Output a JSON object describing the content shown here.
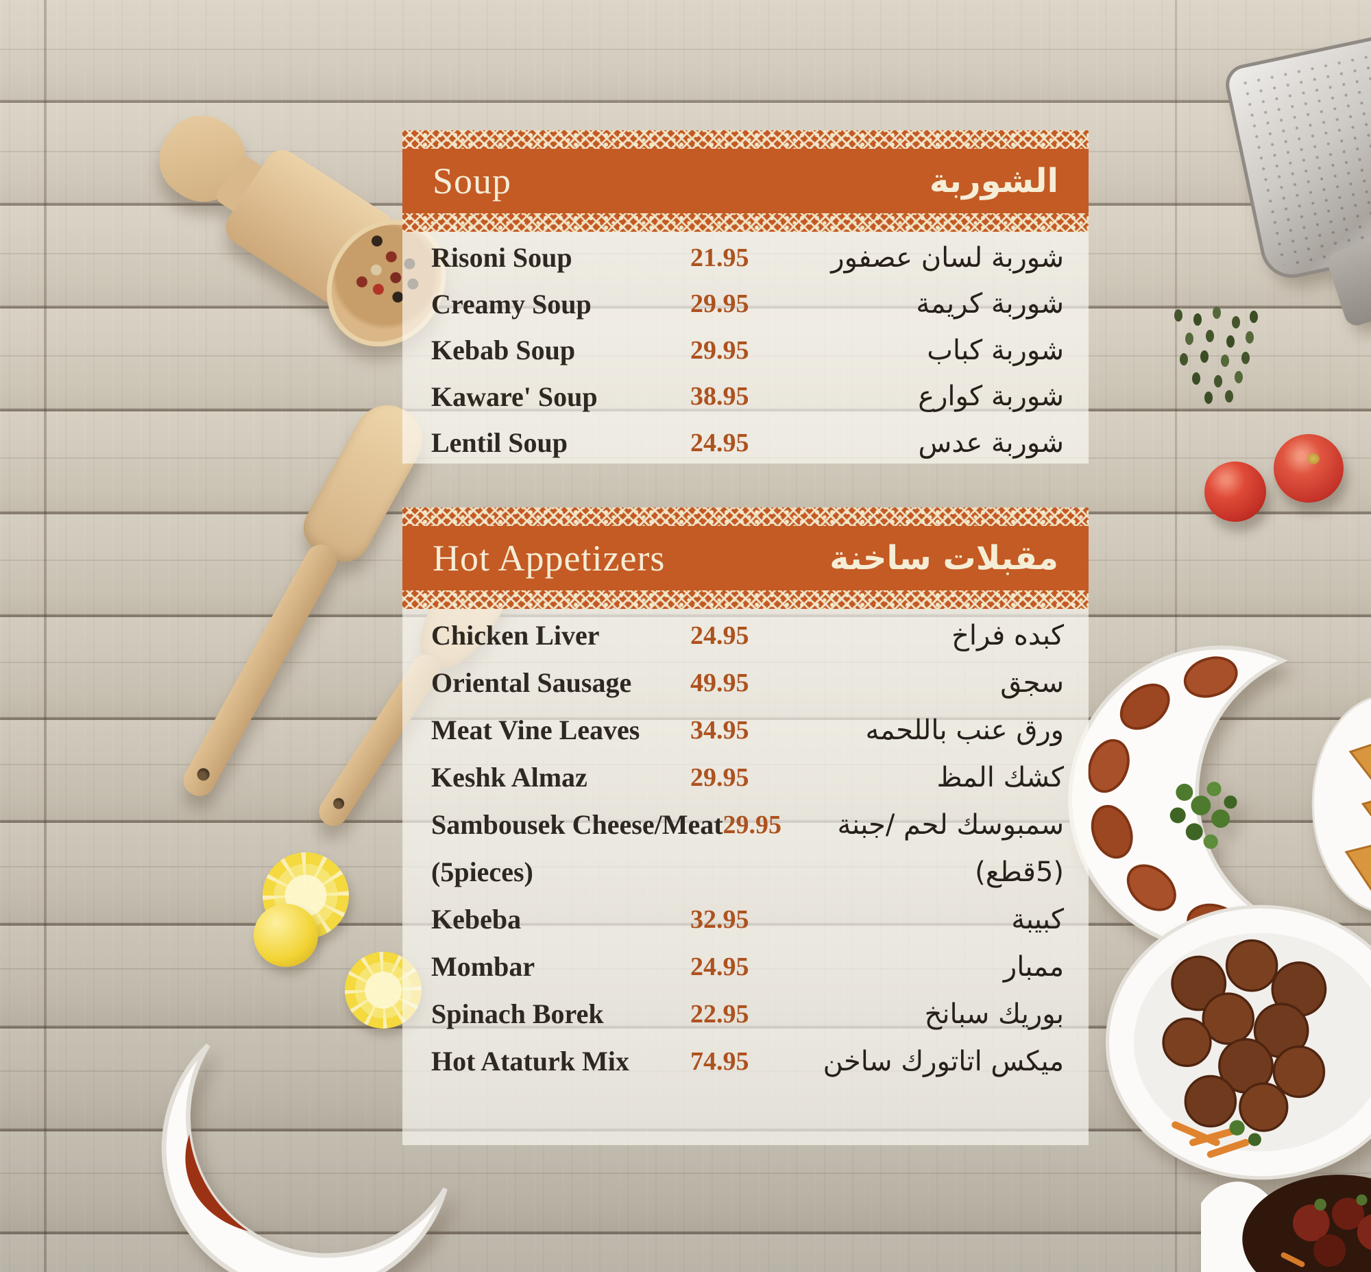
{
  "sections": [
    {
      "id": "soup",
      "title_en": "Soup",
      "title_ar": "الشوربة",
      "items": [
        {
          "en": "Risoni Soup",
          "price": "21.95",
          "ar": "شوربة لسان عصفور"
        },
        {
          "en": "Creamy Soup",
          "price": "29.95",
          "ar": "شوربة كريمة"
        },
        {
          "en": "Kebab Soup",
          "price": "29.95",
          "ar": "شوربة كباب"
        },
        {
          "en": "Kaware' Soup",
          "price": "38.95",
          "ar": "شوربة كوارع"
        },
        {
          "en": "Lentil Soup",
          "price": "24.95",
          "ar": "شوربة عدس"
        }
      ]
    },
    {
      "id": "hot-appetizers",
      "title_en": "Hot Appetizers",
      "title_ar": "مقبلات ساخنة",
      "items": [
        {
          "en": "Chicken Liver",
          "price": "24.95",
          "ar": "كبده فراخ"
        },
        {
          "en": "Oriental Sausage",
          "price": "49.95",
          "ar": "سجق"
        },
        {
          "en": "Meat Vine Leaves",
          "price": "34.95",
          "ar": "ورق عنب باللحمه"
        },
        {
          "en": "Keshk Almaz",
          "price": "29.95",
          "ar": "كشك المظ"
        },
        {
          "en": "Sambousek Cheese/Meat",
          "price": "29.95",
          "ar": "سمبوسك لحم /جبنة"
        },
        {
          "en": "(5pieces)",
          "price": "",
          "ar": "(5قطع)"
        },
        {
          "en": "Kebeba",
          "price": "32.95",
          "ar": "كبيبة"
        },
        {
          "en": "Mombar",
          "price": "24.95",
          "ar": "ممبار"
        },
        {
          "en": "Spinach Borek",
          "price": "22.95",
          "ar": "بوريك سبانخ"
        },
        {
          "en": "Hot Ataturk Mix",
          "price": "74.95",
          "ar": "ميكس اتاتورك ساخن"
        }
      ]
    }
  ],
  "colors": {
    "band_orange": "#c45a24",
    "lace_cream": "#f2e7cb",
    "title_cream": "#f5edd5",
    "price_brown": "#ad521f",
    "item_text": "#2e2821",
    "wood_base": "#d2cabc"
  }
}
